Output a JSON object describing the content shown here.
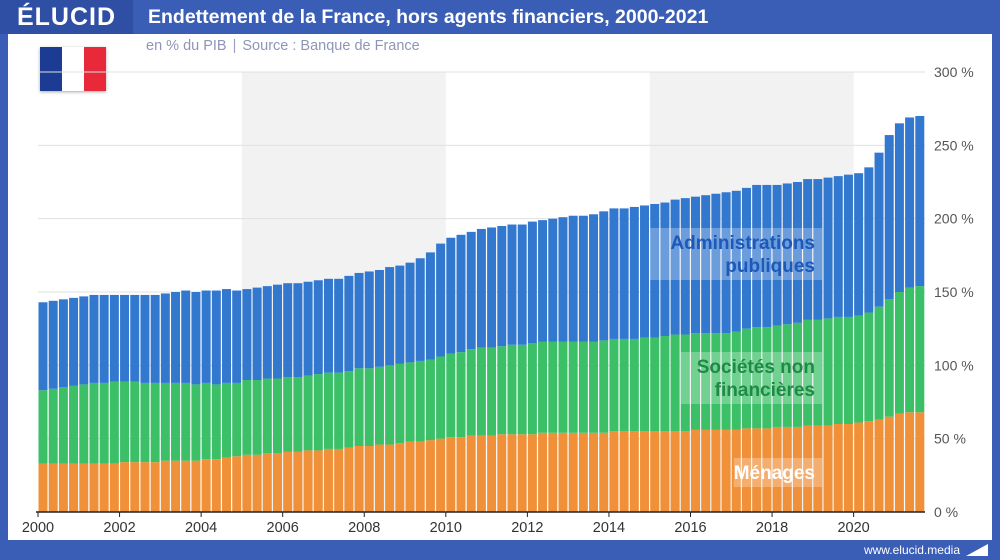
{
  "brand": "ÉLUCID",
  "title": "Endettement de la France, hors agents financiers, 2000-2021",
  "subtitle_unit": "en % du PIB",
  "subtitle_source": "Source : Banque de France",
  "footer_url": "www.elucid.media",
  "flag_icon": "france-flag-icon",
  "colors": {
    "background": "#3a5db6",
    "menages": "#f0913a",
    "societes": "#3bbf67",
    "administrations": "#3278cf",
    "shade": "#f2f2f2"
  },
  "chart_data": {
    "type": "bar",
    "stacked": true,
    "x_start": 2000,
    "x_step": 0.25,
    "ylim": [
      0,
      300
    ],
    "yticks": [
      {
        "value": 0,
        "label": "0 %"
      },
      {
        "value": 50,
        "label": "50 %"
      },
      {
        "value": 100,
        "label": "100 %"
      },
      {
        "value": 150,
        "label": "150 %"
      },
      {
        "value": 200,
        "label": "200 %"
      },
      {
        "value": 250,
        "label": "250 %"
      },
      {
        "value": 300,
        "label": "300 %"
      }
    ],
    "xticks": [
      {
        "value": 2000,
        "label": "2000"
      },
      {
        "value": 2002,
        "label": "2002"
      },
      {
        "value": 2004,
        "label": "2004"
      },
      {
        "value": 2006,
        "label": "2006"
      },
      {
        "value": 2008,
        "label": "2008"
      },
      {
        "value": 2010,
        "label": "2010"
      },
      {
        "value": 2012,
        "label": "2012"
      },
      {
        "value": 2014,
        "label": "2014"
      },
      {
        "value": 2016,
        "label": "2016"
      },
      {
        "value": 2018,
        "label": "2018"
      },
      {
        "value": 2020,
        "label": "2020"
      }
    ],
    "shaded_ranges": [
      [
        2005,
        2010
      ],
      [
        2015,
        2020
      ]
    ],
    "grid": true,
    "series": [
      {
        "name": "Ménages",
        "values": [
          33,
          33,
          33,
          33,
          33,
          33,
          33,
          33,
          34,
          34,
          34,
          34,
          35,
          35,
          35,
          35,
          36,
          36,
          37,
          38,
          39,
          39,
          40,
          40,
          41,
          41,
          42,
          42,
          43,
          43,
          44,
          45,
          45,
          46,
          46,
          47,
          48,
          48,
          49,
          50,
          51,
          51,
          52,
          52,
          52,
          53,
          53,
          53,
          53,
          54,
          54,
          54,
          54,
          54,
          54,
          54,
          55,
          55,
          55,
          55,
          55,
          55,
          55,
          55,
          56,
          56,
          56,
          56,
          56,
          57,
          57,
          57,
          58,
          58,
          58,
          59,
          59,
          59,
          60,
          60,
          61,
          62,
          63,
          65,
          67,
          68,
          68
        ]
      },
      {
        "name": "Sociétés non financières",
        "values": [
          50,
          51,
          52,
          53,
          54,
          55,
          55,
          56,
          55,
          55,
          54,
          54,
          53,
          53,
          53,
          52,
          52,
          51,
          51,
          50,
          51,
          51,
          51,
          51,
          51,
          51,
          51,
          52,
          52,
          52,
          52,
          53,
          53,
          53,
          54,
          54,
          54,
          55,
          55,
          56,
          57,
          58,
          59,
          60,
          60,
          60,
          61,
          61,
          62,
          62,
          62,
          62,
          62,
          62,
          62,
          63,
          63,
          63,
          63,
          64,
          64,
          65,
          66,
          66,
          66,
          66,
          66,
          66,
          67,
          68,
          69,
          69,
          69,
          70,
          71,
          72,
          72,
          73,
          73,
          73,
          73,
          74,
          77,
          80,
          83,
          85,
          86
        ]
      },
      {
        "name": "Administrations publiques",
        "values": [
          60,
          60,
          60,
          60,
          60,
          60,
          60,
          59,
          59,
          59,
          60,
          60,
          61,
          62,
          63,
          63,
          63,
          64,
          64,
          63,
          62,
          63,
          63,
          64,
          64,
          64,
          64,
          64,
          64,
          64,
          65,
          65,
          66,
          66,
          67,
          67,
          68,
          70,
          73,
          77,
          79,
          80,
          80,
          81,
          82,
          82,
          82,
          82,
          83,
          83,
          84,
          85,
          86,
          86,
          87,
          88,
          89,
          89,
          90,
          90,
          91,
          91,
          92,
          93,
          93,
          94,
          95,
          96,
          96,
          96,
          97,
          97,
          96,
          96,
          96,
          96,
          96,
          96,
          96,
          97,
          97,
          99,
          105,
          112,
          115,
          116,
          116
        ]
      }
    ]
  },
  "series_labels": {
    "administrations": [
      "Administrations",
      "publiques"
    ],
    "societes": [
      "Sociétés non",
      "financières"
    ],
    "menages": [
      "Ménages"
    ]
  }
}
